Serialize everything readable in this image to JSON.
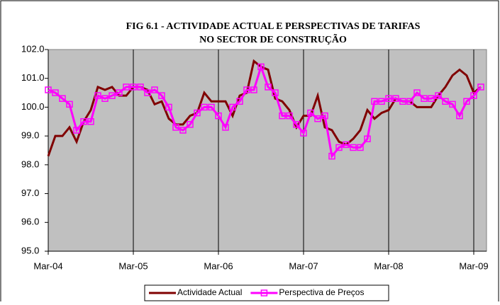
{
  "chart_data": {
    "type": "line",
    "title": [
      "FIG 6.1 - ACTIVIDADE ACTUAL E PERSPECTIVAS DE TARIFAS",
      "NO SECTOR DE CONSTRUÇÃO"
    ],
    "categories": [
      "Mar-04",
      null,
      null,
      null,
      null,
      null,
      null,
      null,
      null,
      null,
      null,
      null,
      "Mar-05",
      null,
      null,
      null,
      null,
      null,
      null,
      null,
      null,
      null,
      null,
      null,
      "Mar-06",
      null,
      null,
      null,
      null,
      null,
      null,
      null,
      null,
      null,
      null,
      null,
      "Mar-07",
      null,
      null,
      null,
      null,
      null,
      null,
      null,
      null,
      null,
      null,
      null,
      "Mar-08",
      null,
      null,
      null,
      null,
      null,
      null,
      null,
      null,
      null,
      null,
      null,
      "Mar-09",
      null
    ],
    "series": [
      {
        "name": "Actividade Actual",
        "color": "#800000",
        "marker": false,
        "values": [
          98.3,
          99.0,
          99.0,
          99.3,
          98.8,
          99.5,
          99.9,
          100.7,
          100.6,
          100.7,
          100.4,
          100.4,
          100.7,
          100.7,
          100.6,
          100.1,
          100.2,
          99.6,
          99.4,
          99.4,
          99.7,
          99.8,
          100.5,
          100.2,
          100.2,
          100.2,
          99.7,
          100.4,
          100.5,
          101.6,
          101.4,
          101.3,
          100.3,
          100.2,
          99.9,
          99.3,
          99.7,
          99.7,
          100.4,
          99.3,
          99.2,
          98.8,
          98.7,
          98.9,
          99.2,
          99.9,
          99.6,
          99.8,
          99.9,
          100.3,
          100.2,
          100.2,
          100.0,
          100.0,
          100.0,
          100.4,
          100.7,
          101.1,
          101.3,
          101.1,
          100.5,
          100.7
        ]
      },
      {
        "name": "Perspectiva de Preços",
        "color": "#ff00ff",
        "marker": true,
        "values": [
          100.6,
          100.5,
          100.3,
          100.1,
          99.2,
          99.5,
          99.5,
          100.4,
          100.3,
          100.4,
          100.5,
          100.7,
          100.7,
          100.7,
          100.5,
          100.6,
          100.4,
          100.0,
          99.3,
          99.2,
          99.4,
          99.8,
          100.0,
          100.0,
          99.7,
          99.3,
          100.0,
          100.2,
          100.6,
          100.6,
          101.4,
          100.7,
          100.5,
          99.7,
          99.7,
          99.4,
          99.1,
          99.8,
          99.6,
          99.7,
          98.3,
          98.6,
          98.7,
          98.6,
          98.6,
          98.9,
          100.2,
          100.2,
          100.3,
          100.3,
          100.2,
          100.2,
          100.5,
          100.3,
          100.3,
          100.4,
          100.2,
          100.1,
          99.7,
          100.2,
          100.4,
          100.7
        ]
      }
    ],
    "ylim": [
      95,
      102
    ],
    "yticks": [
      {
        "value": 95,
        "label": "95.0"
      },
      {
        "value": 96,
        "label": "96.0"
      },
      {
        "value": 97,
        "label": "97.0"
      },
      {
        "value": 98,
        "label": "98.0"
      },
      {
        "value": 99,
        "label": "99.0"
      },
      {
        "value": 100,
        "label": "100.0"
      },
      {
        "value": 101,
        "label": "101.0"
      },
      {
        "value": 102,
        "label": "102.0"
      }
    ],
    "plot_background": "#c0c0c0",
    "legend": "bottom"
  }
}
